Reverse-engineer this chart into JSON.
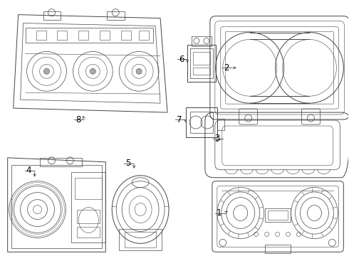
{
  "background_color": "#ffffff",
  "line_color": "#444444",
  "label_color": "#000000",
  "label_fontsize": 8.5,
  "fig_width": 4.9,
  "fig_height": 3.6,
  "dpi": 100
}
